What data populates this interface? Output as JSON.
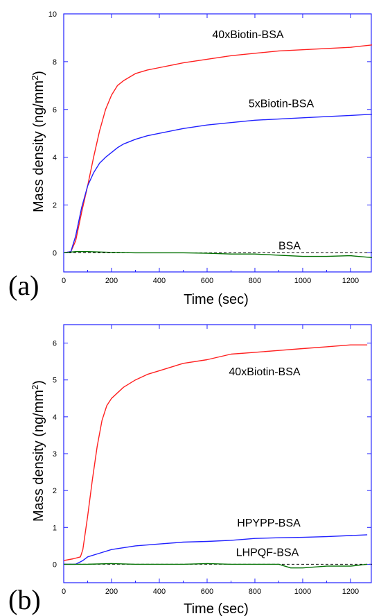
{
  "chart_data": [
    {
      "type": "line",
      "panel_label": "(a)",
      "xlabel": "Time (sec)",
      "ylabel": "Mass density (ng/mm",
      "ylabel_sup": "2",
      "ylabel_close": ")",
      "xlim": [
        0,
        1290
      ],
      "ylim": [
        -0.8,
        10
      ],
      "x_ticks": [
        "0",
        "200",
        "400",
        "600",
        "800",
        "1000",
        "1200"
      ],
      "y_ticks": [
        "0",
        "2",
        "4",
        "6",
        "8",
        "10"
      ],
      "reference_line": 0,
      "series": [
        {
          "name": "40xBiotin-BSA",
          "color": "#ff2020",
          "x": [
            0,
            30,
            50,
            75,
            100,
            125,
            150,
            175,
            200,
            225,
            250,
            300,
            350,
            400,
            500,
            600,
            700,
            800,
            900,
            1000,
            1100,
            1200,
            1290
          ],
          "y": [
            0,
            0.05,
            0.5,
            1.7,
            2.8,
            4.0,
            5.1,
            6.0,
            6.6,
            7.0,
            7.2,
            7.5,
            7.65,
            7.75,
            7.95,
            8.1,
            8.25,
            8.35,
            8.45,
            8.5,
            8.55,
            8.6,
            8.7
          ]
        },
        {
          "name": "5xBiotin-BSA",
          "color": "#2020ff",
          "x": [
            0,
            30,
            50,
            75,
            100,
            125,
            150,
            175,
            200,
            225,
            250,
            300,
            350,
            400,
            500,
            600,
            700,
            800,
            900,
            1000,
            1100,
            1200,
            1290
          ],
          "y": [
            0,
            0.05,
            0.7,
            1.9,
            2.8,
            3.35,
            3.75,
            4.0,
            4.2,
            4.4,
            4.55,
            4.75,
            4.9,
            5.0,
            5.2,
            5.35,
            5.45,
            5.55,
            5.6,
            5.65,
            5.7,
            5.75,
            5.8
          ]
        },
        {
          "name": "BSA",
          "color": "#007000",
          "x": [
            0,
            50,
            100,
            200,
            300,
            400,
            500,
            600,
            700,
            800,
            900,
            1000,
            1100,
            1200,
            1290
          ],
          "y": [
            0,
            0.05,
            0.05,
            0.02,
            0.0,
            0.0,
            0.0,
            -0.02,
            -0.05,
            -0.05,
            -0.1,
            -0.15,
            -0.15,
            -0.12,
            -0.2
          ]
        }
      ]
    },
    {
      "type": "line",
      "panel_label": "(b)",
      "xlabel": "Time (sec)",
      "ylabel": "Mass density (ng/mm",
      "ylabel_sup": "2",
      "ylabel_close": ")",
      "xlim": [
        0,
        1290
      ],
      "ylim": [
        -0.5,
        6.5
      ],
      "x_ticks": [
        "0",
        "200",
        "400",
        "600",
        "800",
        "1000",
        "1200"
      ],
      "y_ticks": [
        "0",
        "1",
        "2",
        "3",
        "4",
        "5",
        "6"
      ],
      "reference_line": 0,
      "series": [
        {
          "name": "40xBiotin-BSA",
          "color": "#ff2020",
          "x": [
            0,
            40,
            70,
            80,
            100,
            120,
            140,
            160,
            180,
            200,
            250,
            300,
            350,
            400,
            500,
            600,
            700,
            800,
            900,
            1000,
            1100,
            1200,
            1270
          ],
          "y": [
            0.1,
            0.15,
            0.2,
            0.4,
            1.3,
            2.3,
            3.2,
            3.9,
            4.3,
            4.5,
            4.8,
            5.0,
            5.15,
            5.25,
            5.45,
            5.55,
            5.7,
            5.75,
            5.8,
            5.85,
            5.9,
            5.95,
            5.95
          ]
        },
        {
          "name": "HPYPP-BSA",
          "color": "#2020ff",
          "x": [
            0,
            50,
            80,
            100,
            150,
            200,
            300,
            400,
            500,
            600,
            700,
            800,
            900,
            1000,
            1100,
            1200,
            1270
          ],
          "y": [
            0.0,
            0.0,
            0.1,
            0.2,
            0.3,
            0.4,
            0.5,
            0.55,
            0.6,
            0.62,
            0.65,
            0.7,
            0.72,
            0.73,
            0.75,
            0.78,
            0.8
          ]
        },
        {
          "name": "LHPQF-BSA",
          "color": "#007000",
          "x": [
            0,
            100,
            200,
            300,
            400,
            500,
            600,
            700,
            800,
            900,
            950,
            1000,
            1100,
            1200,
            1270
          ],
          "y": [
            0.0,
            0.0,
            0.02,
            0.0,
            0.0,
            0.0,
            0.02,
            0.0,
            0.0,
            0.0,
            -0.1,
            -0.1,
            -0.05,
            -0.05,
            0.0
          ]
        }
      ]
    }
  ]
}
